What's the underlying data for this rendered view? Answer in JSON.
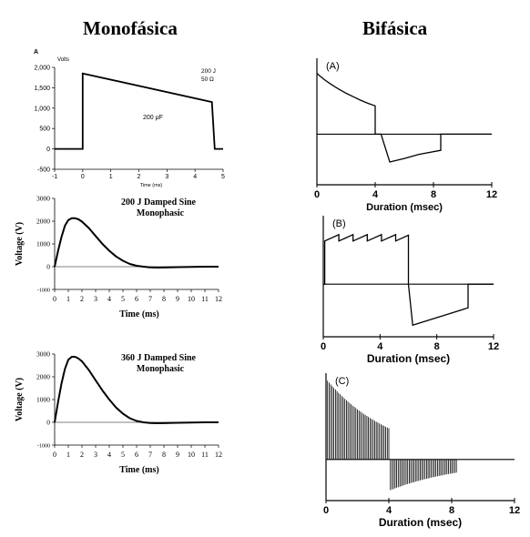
{
  "headers": {
    "left": "Monofásica",
    "right": "Bifásica"
  },
  "chart_data": [
    {
      "id": "mono-a",
      "type": "line",
      "panel_label": "A",
      "ylabel": "Volts",
      "xlabel": "Time (ms)",
      "annotations": [
        "200 J",
        "50 Ω",
        "200 μF"
      ],
      "xlim": [
        -1,
        5
      ],
      "ylim": [
        -500,
        2000
      ],
      "x_ticks": [
        -1,
        0,
        1,
        2,
        3,
        4,
        5
      ],
      "y_ticks": [
        -500,
        0,
        500,
        1000,
        1500,
        2000
      ],
      "y_tick_labels": [
        "-500",
        "0",
        "500",
        "1,000",
        "1,500",
        "2,000"
      ],
      "series": [
        {
          "x": [
            -1,
            0,
            0,
            4.6,
            4.7,
            5
          ],
          "y": [
            0,
            0,
            1850,
            1150,
            0,
            0
          ]
        }
      ]
    },
    {
      "id": "mono-200",
      "type": "line",
      "title": "200 J Damped Sine",
      "subtitle": "Monophasic",
      "xlabel": "Time (ms)",
      "ylabel": "Voltage (V)",
      "xlim": [
        0,
        12
      ],
      "ylim": [
        -1000,
        3000
      ],
      "x_ticks": [
        0,
        1,
        2,
        3,
        4,
        5,
        6,
        7,
        8,
        9,
        10,
        11,
        12
      ],
      "y_ticks": [
        -1000,
        0,
        1000,
        2000,
        3000
      ],
      "series": [
        {
          "x": [
            0,
            0.25,
            0.5,
            0.75,
            1,
            1.25,
            1.5,
            1.75,
            2,
            2.5,
            3,
            3.5,
            4,
            4.5,
            5,
            5.5,
            6,
            6.5,
            7,
            7.5,
            8,
            9,
            10,
            11,
            12
          ],
          "y": [
            0,
            700,
            1300,
            1800,
            2050,
            2130,
            2130,
            2080,
            1980,
            1700,
            1350,
            1000,
            700,
            450,
            260,
            120,
            40,
            0,
            -30,
            -40,
            -35,
            -20,
            -10,
            0,
            0
          ]
        }
      ]
    },
    {
      "id": "mono-360",
      "type": "line",
      "title": "360 J Damped Sine",
      "subtitle": "Monophasic",
      "xlabel": "Time (ms)",
      "ylabel": "Voltage (V)",
      "xlim": [
        0,
        12
      ],
      "ylim": [
        -1000,
        3000
      ],
      "x_ticks": [
        0,
        1,
        2,
        3,
        4,
        5,
        6,
        7,
        8,
        9,
        10,
        11,
        12
      ],
      "y_ticks": [
        -1000,
        0,
        1000,
        2000,
        3000
      ],
      "series": [
        {
          "x": [
            0,
            0.25,
            0.5,
            0.75,
            1,
            1.25,
            1.5,
            1.75,
            2,
            2.5,
            3,
            3.5,
            4,
            4.5,
            5,
            5.5,
            6,
            6.5,
            7,
            7.5,
            8,
            9,
            10,
            11,
            12
          ],
          "y": [
            0,
            900,
            1700,
            2350,
            2750,
            2880,
            2880,
            2800,
            2680,
            2300,
            1850,
            1400,
            1000,
            650,
            380,
            180,
            60,
            0,
            -30,
            -40,
            -35,
            -20,
            -10,
            0,
            0
          ]
        }
      ]
    },
    {
      "id": "bi-a",
      "type": "line",
      "panel_label": "(A)",
      "xlabel": "Duration (msec)",
      "xlim": [
        0,
        12
      ],
      "ylim": [
        -1,
        1.5
      ],
      "x_ticks": [
        0,
        4,
        8,
        12
      ],
      "series": [
        {
          "x": [
            0,
            0.5,
            1,
            1.5,
            2,
            2.5,
            3,
            3.5,
            4,
            4,
            4.4,
            5,
            6,
            7,
            8.5,
            8.5,
            12
          ],
          "y": [
            1.2,
            1.08,
            0.98,
            0.89,
            0.81,
            0.74,
            0.67,
            0.61,
            0.56,
            0,
            0,
            -0.55,
            -0.48,
            -0.4,
            -0.32,
            0,
            0
          ]
        }
      ]
    },
    {
      "id": "bi-b",
      "type": "line",
      "panel_label": "(B)",
      "xlabel": "Duration (msec)",
      "xlim": [
        0,
        12
      ],
      "ylim": [
        -1,
        1.3
      ],
      "x_ticks": [
        0,
        4,
        8,
        12
      ],
      "series": [
        {
          "x": [
            0,
            0.1,
            0.1,
            1.1,
            1.1,
            2.1,
            2.1,
            3.1,
            3.1,
            4.1,
            4.1,
            5.1,
            5.1,
            6,
            6,
            6.3,
            10.2,
            10.2,
            12
          ],
          "y": [
            0,
            0,
            0.82,
            0.94,
            0.82,
            0.94,
            0.82,
            0.94,
            0.82,
            0.94,
            0.82,
            0.94,
            0.82,
            0.93,
            0,
            -0.78,
            -0.45,
            0,
            0
          ]
        }
      ]
    },
    {
      "id": "bi-c",
      "type": "line",
      "panel_label": "(C)",
      "xlabel": "Duration (msec)",
      "xlim": [
        0,
        12
      ],
      "ylim": [
        -0.5,
        1.05
      ],
      "x_ticks": [
        0,
        4,
        8,
        12
      ],
      "pulse_train": {
        "phase1_x": [
          0,
          4
        ],
        "phase1_envelope_y": [
          0.98,
          0.38
        ],
        "phase2_x": [
          4,
          8.3
        ],
        "phase2_envelope_y": [
          -0.38,
          -0.16
        ],
        "pulse_period": 0.1
      }
    }
  ]
}
